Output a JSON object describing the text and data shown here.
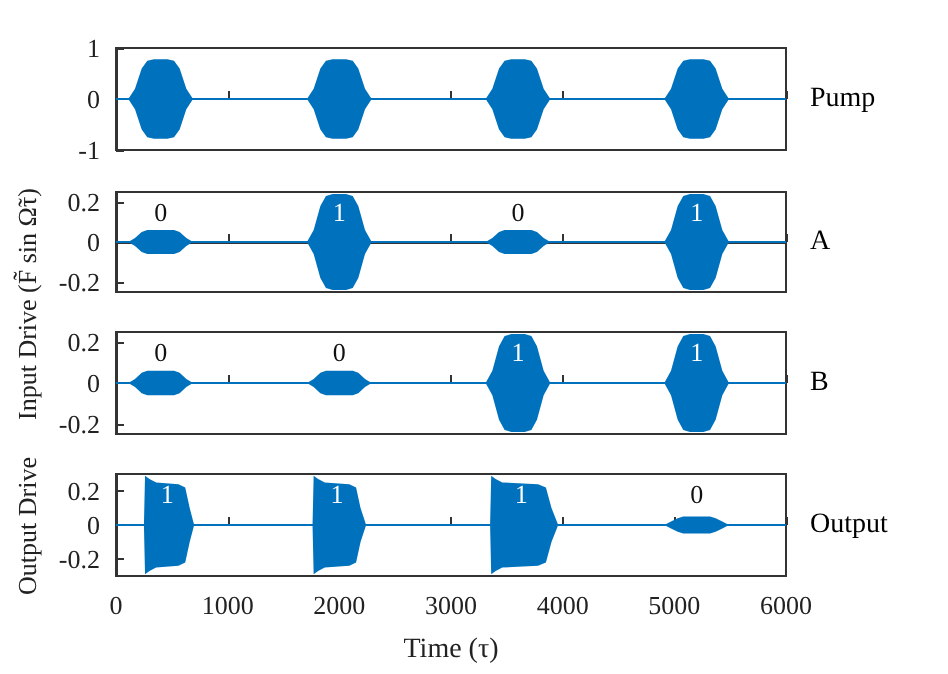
{
  "chart_data": [
    {
      "type": "line",
      "x": [
        0,
        110,
        170,
        230,
        280,
        340,
        400,
        460,
        520,
        570,
        630,
        690,
        1710,
        1770,
        1830,
        1880,
        1940,
        2000,
        2060,
        2120,
        2170,
        2230,
        2290,
        3310,
        3370,
        3430,
        3480,
        3540,
        3600,
        3660,
        3720,
        3770,
        3830,
        3890,
        4910,
        4970,
        5030,
        5080,
        5140,
        5200,
        5260,
        5320,
        5370,
        5430,
        5490,
        6000
      ],
      "series": [
        {
          "name": "Pump",
          "color": "#0072bd",
          "values": [
            0,
            0,
            0,
            0,
            0,
            0,
            0,
            0,
            0,
            0,
            0,
            0,
            0,
            0,
            0,
            0,
            0,
            0,
            0,
            0,
            0,
            0,
            0,
            0,
            0,
            0,
            0,
            0,
            0,
            0,
            0,
            0,
            0,
            0,
            0,
            0,
            0,
            0,
            0,
            0,
            0,
            0,
            0,
            0,
            0,
            0
          ],
          "upper": [
            0,
            0,
            0.2,
            0.6,
            0.75,
            0.78,
            0.78,
            0.78,
            0.75,
            0.6,
            0.2,
            0,
            0,
            0.2,
            0.6,
            0.75,
            0.78,
            0.78,
            0.78,
            0.75,
            0.6,
            0.2,
            0,
            0,
            0.2,
            0.6,
            0.75,
            0.78,
            0.78,
            0.78,
            0.75,
            0.6,
            0.2,
            0,
            0,
            0.2,
            0.6,
            0.75,
            0.78,
            0.78,
            0.78,
            0.75,
            0.6,
            0.2,
            0,
            0
          ],
          "lower": [
            0,
            0,
            -0.2,
            -0.6,
            -0.75,
            -0.78,
            -0.78,
            -0.78,
            -0.75,
            -0.6,
            -0.2,
            0,
            0,
            -0.2,
            -0.6,
            -0.75,
            -0.78,
            -0.78,
            -0.78,
            -0.75,
            -0.6,
            -0.2,
            0,
            0,
            -0.2,
            -0.6,
            -0.75,
            -0.78,
            -0.78,
            -0.78,
            -0.75,
            -0.6,
            -0.2,
            0,
            0,
            -0.2,
            -0.6,
            -0.75,
            -0.78,
            -0.78,
            -0.78,
            -0.75,
            -0.6,
            -0.2,
            0,
            0
          ]
        }
      ],
      "xlim": [
        0,
        6000
      ],
      "xticks": [
        0,
        1000,
        2000,
        3000,
        4000,
        5000,
        6000
      ],
      "ylim": [
        -1,
        1
      ],
      "yticks": [
        -1,
        0,
        1
      ],
      "tick_labels": "y"
    },
    {
      "type": "line",
      "ylabel": "Input Drive (F̃ sin Ω̃τ)",
      "x": [
        0,
        110,
        170,
        230,
        280,
        340,
        400,
        460,
        520,
        570,
        630,
        690,
        1710,
        1770,
        1830,
        1880,
        1940,
        2000,
        2060,
        2120,
        2170,
        2230,
        2290,
        3310,
        3370,
        3430,
        3480,
        3540,
        3600,
        3660,
        3720,
        3770,
        3830,
        3890,
        4910,
        4970,
        5030,
        5080,
        5140,
        5200,
        5260,
        5320,
        5370,
        5430,
        5490,
        6000
      ],
      "series": [
        {
          "name": "A",
          "color": "#0072bd",
          "values": [
            0,
            0,
            0,
            0,
            0,
            0,
            0,
            0,
            0,
            0,
            0,
            0,
            0,
            0,
            0,
            0,
            0,
            0,
            0,
            0,
            0,
            0,
            0,
            0,
            0,
            0,
            0,
            0,
            0,
            0,
            0,
            0,
            0,
            0,
            0,
            0,
            0,
            0,
            0,
            0,
            0,
            0,
            0,
            0,
            0,
            0
          ],
          "upper": [
            0,
            0,
            0.02,
            0.05,
            0.06,
            0.06,
            0.06,
            0.06,
            0.06,
            0.05,
            0.02,
            0,
            0,
            0.06,
            0.18,
            0.23,
            0.24,
            0.24,
            0.24,
            0.23,
            0.18,
            0.06,
            0,
            0,
            0.02,
            0.05,
            0.06,
            0.06,
            0.06,
            0.06,
            0.06,
            0.05,
            0.02,
            0,
            0,
            0.06,
            0.18,
            0.23,
            0.24,
            0.24,
            0.24,
            0.23,
            0.18,
            0.06,
            0,
            0
          ],
          "lower": [
            0,
            0,
            -0.02,
            -0.05,
            -0.06,
            -0.06,
            -0.06,
            -0.06,
            -0.06,
            -0.05,
            -0.02,
            0,
            0,
            -0.06,
            -0.18,
            -0.23,
            -0.24,
            -0.24,
            -0.24,
            -0.23,
            -0.18,
            -0.06,
            0,
            0,
            -0.02,
            -0.05,
            -0.06,
            -0.06,
            -0.06,
            -0.06,
            -0.06,
            -0.05,
            -0.02,
            0,
            0,
            -0.06,
            -0.18,
            -0.23,
            -0.24,
            -0.24,
            -0.24,
            -0.23,
            -0.18,
            -0.06,
            0,
            0
          ]
        }
      ],
      "annotations": [
        "0",
        "1",
        "0",
        "1"
      ],
      "xlim": [
        0,
        6000
      ],
      "xticks": [
        0,
        1000,
        2000,
        3000,
        4000,
        5000,
        6000
      ],
      "ylim": [
        -0.25,
        0.25
      ],
      "yticks": [
        -0.2,
        0,
        0.2
      ],
      "tick_labels": "y"
    },
    {
      "type": "line",
      "x": [
        0,
        110,
        170,
        230,
        280,
        340,
        400,
        460,
        520,
        570,
        630,
        690,
        1710,
        1770,
        1830,
        1880,
        1940,
        2000,
        2060,
        2120,
        2170,
        2230,
        2290,
        3310,
        3370,
        3430,
        3480,
        3540,
        3600,
        3660,
        3720,
        3770,
        3830,
        3890,
        4910,
        4970,
        5030,
        5080,
        5140,
        5200,
        5260,
        5320,
        5370,
        5430,
        5490,
        6000
      ],
      "series": [
        {
          "name": "B",
          "color": "#0072bd",
          "values": [
            0,
            0,
            0,
            0,
            0,
            0,
            0,
            0,
            0,
            0,
            0,
            0,
            0,
            0,
            0,
            0,
            0,
            0,
            0,
            0,
            0,
            0,
            0,
            0,
            0,
            0,
            0,
            0,
            0,
            0,
            0,
            0,
            0,
            0,
            0,
            0,
            0,
            0,
            0,
            0,
            0,
            0,
            0,
            0,
            0,
            0
          ],
          "upper": [
            0,
            0,
            0.02,
            0.05,
            0.06,
            0.06,
            0.06,
            0.06,
            0.06,
            0.05,
            0.02,
            0,
            0,
            0.02,
            0.05,
            0.06,
            0.06,
            0.06,
            0.06,
            0.06,
            0.05,
            0.02,
            0,
            0,
            0.06,
            0.18,
            0.23,
            0.24,
            0.24,
            0.24,
            0.23,
            0.18,
            0.06,
            0,
            0,
            0.06,
            0.18,
            0.23,
            0.24,
            0.24,
            0.24,
            0.23,
            0.18,
            0.06,
            0,
            0
          ],
          "lower": [
            0,
            0,
            -0.02,
            -0.05,
            -0.06,
            -0.06,
            -0.06,
            -0.06,
            -0.06,
            -0.05,
            -0.02,
            0,
            0,
            -0.02,
            -0.05,
            -0.06,
            -0.06,
            -0.06,
            -0.06,
            -0.06,
            -0.05,
            -0.02,
            0,
            0,
            -0.06,
            -0.18,
            -0.23,
            -0.24,
            -0.24,
            -0.24,
            -0.23,
            -0.18,
            -0.06,
            0,
            0,
            -0.06,
            -0.18,
            -0.23,
            -0.24,
            -0.24,
            -0.24,
            -0.23,
            -0.18,
            -0.06,
            0,
            0
          ]
        }
      ],
      "annotations": [
        "0",
        "0",
        "1",
        "1"
      ],
      "xlim": [
        0,
        6000
      ],
      "xticks": [
        0,
        1000,
        2000,
        3000,
        4000,
        5000,
        6000
      ],
      "ylim": [
        -0.25,
        0.25
      ],
      "yticks": [
        -0.2,
        0,
        0.2
      ],
      "tick_labels": "y"
    },
    {
      "type": "line",
      "xlabel": "Time (τ)",
      "ylabel": "Output Drive",
      "x": [
        0,
        250,
        260,
        300,
        360,
        560,
        620,
        660,
        700,
        1760,
        1770,
        1810,
        1870,
        2090,
        2150,
        2190,
        2240,
        3350,
        3360,
        3400,
        3460,
        3780,
        3850,
        3900,
        3960,
        4910,
        4970,
        5030,
        5080,
        5140,
        5200,
        5260,
        5320,
        5370,
        5430,
        5490,
        6000
      ],
      "series": [
        {
          "name": "Output",
          "color": "#0072bd",
          "values": [
            0,
            0,
            0,
            0,
            0,
            0,
            0,
            0,
            0,
            0,
            0,
            0,
            0,
            0,
            0,
            0,
            0,
            0,
            0,
            0,
            0,
            0,
            0,
            0,
            0,
            0,
            0,
            0,
            0,
            0,
            0,
            0,
            0,
            0,
            0,
            0,
            0
          ],
          "upper": [
            0,
            0,
            0.29,
            0.27,
            0.25,
            0.24,
            0.22,
            0.1,
            0,
            0,
            0.29,
            0.27,
            0.25,
            0.24,
            0.22,
            0.1,
            0,
            0,
            0.29,
            0.27,
            0.25,
            0.24,
            0.22,
            0.1,
            0,
            0,
            0.02,
            0.04,
            0.05,
            0.05,
            0.05,
            0.05,
            0.05,
            0.04,
            0.02,
            0,
            0
          ],
          "lower": [
            0,
            0,
            -0.29,
            -0.27,
            -0.25,
            -0.24,
            -0.22,
            -0.1,
            0,
            0,
            -0.29,
            -0.27,
            -0.25,
            -0.24,
            -0.22,
            -0.1,
            0,
            0,
            -0.29,
            -0.27,
            -0.25,
            -0.24,
            -0.22,
            -0.1,
            0,
            0,
            -0.02,
            -0.04,
            -0.05,
            -0.05,
            -0.05,
            -0.05,
            -0.05,
            -0.04,
            -0.02,
            0,
            0
          ]
        }
      ],
      "annotations": [
        "1",
        "1",
        "1",
        "0"
      ],
      "xlim": [
        0,
        6000
      ],
      "xticks": [
        0,
        1000,
        2000,
        3000,
        4000,
        5000,
        6000
      ],
      "ylim": [
        -0.3,
        0.3
      ],
      "yticks": [
        -0.2,
        0,
        0.2
      ]
    }
  ]
}
